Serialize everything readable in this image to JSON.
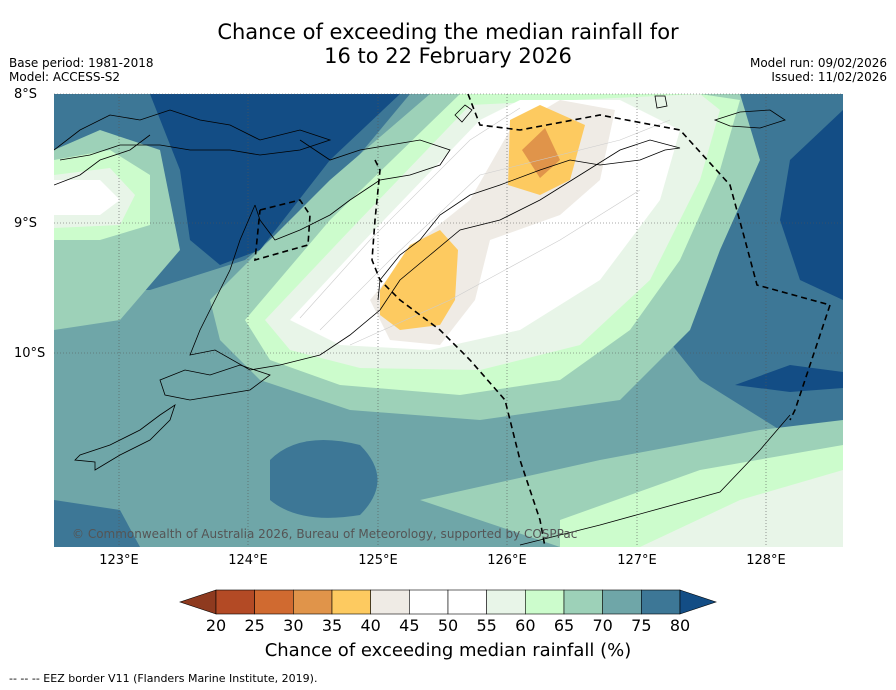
{
  "title_line1": "Chance of exceeding the median rainfall for",
  "title_line2": "16 to 22 February 2026",
  "base_period": "Base period: 1981-2018",
  "model": "Model: ACCESS-S2",
  "model_run": "Model run: 09/02/2026",
  "issued": "Issued: 11/02/2026",
  "lat_labels": [
    "8°S",
    "9°S",
    "10°S"
  ],
  "lon_labels": [
    "123°E",
    "124°E",
    "125°E",
    "126°E",
    "127°E",
    "128°E"
  ],
  "copyright": "© Commonwealth of Australia 2026, Bureau of Meteorology, supported by COSPPac",
  "colorbar": {
    "ticks": [
      "20",
      "25",
      "30",
      "35",
      "40",
      "45",
      "50",
      "55",
      "60",
      "65",
      "70",
      "75",
      "80"
    ],
    "title": "Chance of exceeding median rainfall (%)",
    "colors": [
      "#8e3a1f",
      "#b34a25",
      "#d06a30",
      "#e0944a",
      "#fdca60",
      "#efebe5",
      "#ffffff",
      "#ffffff",
      "#e8f5e8",
      "#ccfccc",
      "#9dd1b8",
      "#6fa6a8",
      "#3d7796",
      "#134d85"
    ]
  },
  "footer": "-- -- -- EEZ border V11 (Flanders Marine Institute, 2019)."
}
